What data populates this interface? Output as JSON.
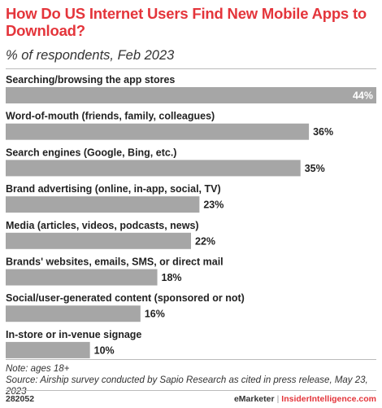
{
  "title": "How Do US Internet Users Find New Mobile Apps to Download?",
  "subtitle": "% of respondents, Feb 2023",
  "colors": {
    "accent": "#e4353b",
    "bar": "#a6a6a6"
  },
  "chart_data": {
    "type": "bar",
    "orientation": "horizontal",
    "categories": [
      "Searching/browsing the app stores",
      "Word-of-mouth (friends, family, colleagues)",
      "Search engines (Google, Bing, etc.)",
      "Brand advertising (online, in-app, social, TV)",
      "Media (articles, videos, podcasts, news)",
      "Brands' websites, emails, SMS, or direct mail",
      "Social/user-generated content (sponsored or not)",
      "In-store or in-venue signage"
    ],
    "values": [
      44,
      36,
      35,
      23,
      22,
      18,
      16,
      10
    ],
    "labels": [
      "44%",
      "36%",
      "35%",
      "23%",
      "22%",
      "18%",
      "16%",
      "10%"
    ],
    "xlim": [
      0,
      44
    ],
    "grid": false,
    "legend": "none"
  },
  "notes": {
    "note": "Note: ages 18+",
    "source": "Source: Airship survey conducted by Sapio Research as cited in press release, May 23, 2023"
  },
  "footer": {
    "chart_id": "282052",
    "brand": "eMarketer",
    "separator": "|",
    "site": "InsiderIntelligence.com"
  }
}
